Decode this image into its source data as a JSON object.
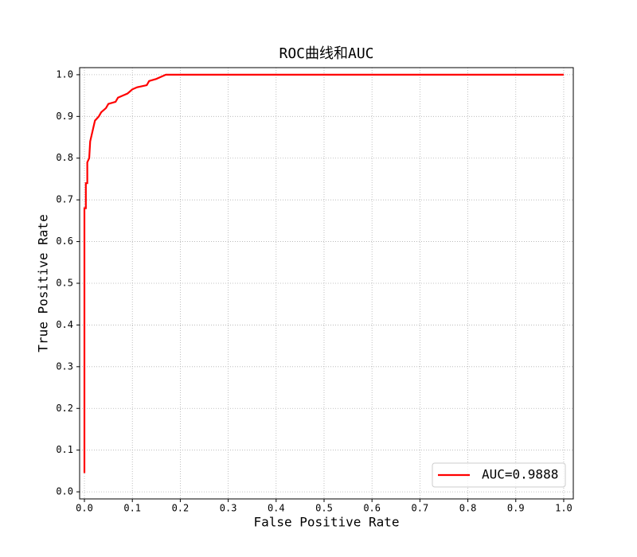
{
  "chart_data": {
    "type": "line",
    "title": "ROC曲线和AUC",
    "xlabel": "False Positive Rate",
    "ylabel": "True Positive Rate",
    "x": [
      0,
      0,
      0.003,
      0.003,
      0.006,
      0.006,
      0.01,
      0.012,
      0.018,
      0.022,
      0.03,
      0.035,
      0.045,
      0.05,
      0.065,
      0.07,
      0.08,
      0.09,
      0.1,
      0.11,
      0.13,
      0.135,
      0.15,
      0.16,
      0.17,
      0.2,
      1.0
    ],
    "series": [
      {
        "name": "AUC=0.9888",
        "color": "#ff0000",
        "values": [
          0.045,
          0.68,
          0.68,
          0.74,
          0.74,
          0.79,
          0.8,
          0.84,
          0.87,
          0.89,
          0.9,
          0.91,
          0.92,
          0.93,
          0.935,
          0.945,
          0.95,
          0.955,
          0.965,
          0.97,
          0.975,
          0.985,
          0.99,
          0.995,
          1.0,
          1.0,
          1.0
        ]
      }
    ],
    "xlim": [
      -0.01,
      1.02
    ],
    "ylim": [
      -0.017,
      1.017
    ],
    "xticks": [
      {
        "value": 0,
        "label": "0.0"
      },
      0.1,
      0.2,
      0.3,
      0.4,
      0.5,
      0.6,
      0.7,
      0.8,
      0.9,
      {
        "value": 1,
        "label": "1.0"
      }
    ],
    "yticks": [
      {
        "value": 0,
        "label": "0.0"
      },
      0.1,
      0.2,
      0.3,
      0.4,
      0.5,
      0.6,
      0.7,
      0.8,
      0.9,
      {
        "value": 1,
        "label": "1.0"
      }
    ],
    "grid": true,
    "legend": "lower right"
  }
}
